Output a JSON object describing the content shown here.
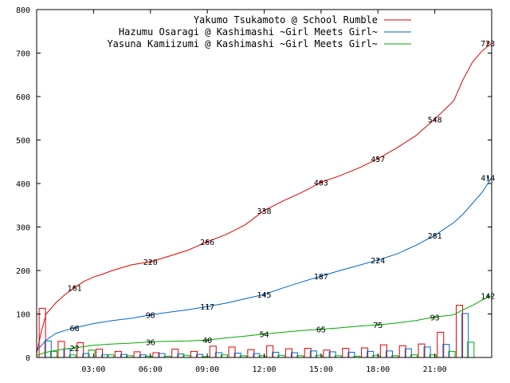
{
  "chart_data": {
    "type": "line",
    "xlim": [
      0,
      24
    ],
    "ylim": [
      0,
      800
    ],
    "x_ticks": [
      {
        "x": 3,
        "label": "03:00"
      },
      {
        "x": 6,
        "label": "06:00"
      },
      {
        "x": 9,
        "label": "09:00"
      },
      {
        "x": 12,
        "label": "12:00"
      },
      {
        "x": 15,
        "label": "15:00"
      },
      {
        "x": 18,
        "label": "18:00"
      },
      {
        "x": 21,
        "label": "21:00"
      }
    ],
    "y_ticks": [
      0,
      100,
      200,
      300,
      400,
      500,
      600,
      700,
      800
    ],
    "grid": false,
    "legend_position": "top-right",
    "series": [
      {
        "name": "Yakumo Tsukamoto @ School Rumble",
        "color": "#e00000",
        "points": [
          [
            0,
            10
          ],
          [
            0.25,
            60
          ],
          [
            0.5,
            100
          ],
          [
            1,
            125
          ],
          [
            1.5,
            145
          ],
          [
            2,
            161
          ],
          [
            2.5,
            175
          ],
          [
            3,
            185
          ],
          [
            3.5,
            192
          ],
          [
            4,
            200
          ],
          [
            5,
            213
          ],
          [
            6,
            220
          ],
          [
            7,
            233
          ],
          [
            8,
            247
          ],
          [
            9,
            266
          ],
          [
            10,
            283
          ],
          [
            11,
            305
          ],
          [
            12,
            338
          ],
          [
            13,
            360
          ],
          [
            14,
            380
          ],
          [
            15,
            403
          ],
          [
            16,
            418
          ],
          [
            17,
            436
          ],
          [
            18,
            457
          ],
          [
            19,
            482
          ],
          [
            20,
            510
          ],
          [
            21,
            548
          ],
          [
            22,
            590
          ],
          [
            22.5,
            640
          ],
          [
            23,
            680
          ],
          [
            23.5,
            705
          ],
          [
            24,
            723
          ]
        ],
        "labels": [
          [
            2,
            161
          ],
          [
            6,
            220
          ],
          [
            9,
            266
          ],
          [
            12,
            338
          ],
          [
            15,
            403
          ],
          [
            18,
            457
          ],
          [
            21,
            548
          ],
          [
            23.8,
            723
          ]
        ],
        "bars": [
          [
            0.3,
            113
          ],
          [
            1.3,
            37
          ],
          [
            2.3,
            34
          ],
          [
            3.3,
            19
          ],
          [
            4.3,
            14
          ],
          [
            5.3,
            13
          ],
          [
            6.3,
            11
          ],
          [
            7.3,
            19
          ],
          [
            8.3,
            14
          ],
          [
            9.3,
            26
          ],
          [
            10.3,
            24
          ],
          [
            11.3,
            18
          ],
          [
            12.3,
            27
          ],
          [
            13.3,
            20
          ],
          [
            14.3,
            21
          ],
          [
            15.3,
            17
          ],
          [
            16.3,
            21
          ],
          [
            17.3,
            22
          ],
          [
            18.3,
            29
          ],
          [
            19.3,
            27
          ],
          [
            20.3,
            31
          ],
          [
            21.3,
            58
          ],
          [
            22.3,
            120
          ]
        ]
      },
      {
        "name": "Hazumu Osaragi @ Kashimashi ~Girl Meets Girl~",
        "color": "#0066cc",
        "points": [
          [
            0,
            15
          ],
          [
            0.5,
            40
          ],
          [
            1,
            55
          ],
          [
            1.5,
            62
          ],
          [
            2,
            68
          ],
          [
            3,
            78
          ],
          [
            4,
            85
          ],
          [
            5,
            90
          ],
          [
            6,
            98
          ],
          [
            7,
            104
          ],
          [
            8,
            110
          ],
          [
            9,
            117
          ],
          [
            10,
            125
          ],
          [
            11,
            135
          ],
          [
            12,
            145
          ],
          [
            13,
            160
          ],
          [
            14,
            174
          ],
          [
            15,
            187
          ],
          [
            16,
            200
          ],
          [
            17,
            212
          ],
          [
            18,
            224
          ],
          [
            19,
            238
          ],
          [
            20,
            258
          ],
          [
            21,
            281
          ],
          [
            22,
            310
          ],
          [
            22.5,
            330
          ],
          [
            23,
            355
          ],
          [
            23.5,
            380
          ],
          [
            24,
            414
          ]
        ],
        "labels": [
          [
            2,
            68
          ],
          [
            6,
            98
          ],
          [
            9,
            117
          ],
          [
            12,
            145
          ],
          [
            15,
            187
          ],
          [
            18,
            224
          ],
          [
            21,
            281
          ],
          [
            23.8,
            414
          ]
        ],
        "bars": [
          [
            0.6,
            38
          ],
          [
            1.6,
            20
          ],
          [
            2.6,
            9
          ],
          [
            3.6,
            6
          ],
          [
            4.6,
            7
          ],
          [
            5.6,
            6
          ],
          [
            6.6,
            9
          ],
          [
            7.6,
            8
          ],
          [
            8.6,
            7
          ],
          [
            9.6,
            11
          ],
          [
            10.6,
            10
          ],
          [
            11.6,
            9
          ],
          [
            12.6,
            12
          ],
          [
            13.6,
            11
          ],
          [
            14.6,
            15
          ],
          [
            15.6,
            13
          ],
          [
            16.6,
            12
          ],
          [
            17.6,
            14
          ],
          [
            18.6,
            15
          ],
          [
            19.6,
            20
          ],
          [
            20.6,
            24
          ],
          [
            21.6,
            30
          ],
          [
            22.6,
            101
          ]
        ]
      },
      {
        "name": "Yasuna Kamiizumi @ Kashimashi ~Girl Meets Girl~",
        "color": "#00aa00",
        "points": [
          [
            0,
            5
          ],
          [
            0.5,
            12
          ],
          [
            1,
            16
          ],
          [
            1.5,
            20
          ],
          [
            2,
            22
          ],
          [
            3,
            28
          ],
          [
            4,
            31
          ],
          [
            5,
            33
          ],
          [
            6,
            36
          ],
          [
            7,
            37
          ],
          [
            8,
            38
          ],
          [
            9,
            40
          ],
          [
            10,
            45
          ],
          [
            11,
            49
          ],
          [
            12,
            54
          ],
          [
            13,
            58
          ],
          [
            14,
            62
          ],
          [
            15,
            65
          ],
          [
            16,
            68
          ],
          [
            17,
            72
          ],
          [
            18,
            75
          ],
          [
            19,
            79
          ],
          [
            20,
            85
          ],
          [
            21,
            93
          ],
          [
            22,
            98
          ],
          [
            22.5,
            110
          ],
          [
            23,
            120
          ],
          [
            23.5,
            132
          ],
          [
            24,
            142
          ]
        ],
        "labels": [
          [
            2,
            22
          ],
          [
            6,
            36
          ],
          [
            9,
            40
          ],
          [
            12,
            54
          ],
          [
            15,
            65
          ],
          [
            18,
            75
          ],
          [
            21,
            93
          ],
          [
            23.8,
            142
          ]
        ],
        "bars": [
          [
            0.9,
            14
          ],
          [
            1.9,
            6
          ],
          [
            2.9,
            17
          ],
          [
            3.9,
            6
          ],
          [
            4.9,
            4
          ],
          [
            5.9,
            3
          ],
          [
            6.9,
            3
          ],
          [
            7.9,
            5
          ],
          [
            8.9,
            2
          ],
          [
            9.9,
            6
          ],
          [
            10.9,
            4
          ],
          [
            11.9,
            4
          ],
          [
            12.9,
            5
          ],
          [
            13.9,
            4
          ],
          [
            14.9,
            5
          ],
          [
            15.9,
            4
          ],
          [
            16.9,
            3
          ],
          [
            17.9,
            5
          ],
          [
            18.9,
            4
          ],
          [
            19.9,
            6
          ],
          [
            20.9,
            6
          ],
          [
            21.9,
            14
          ],
          [
            22.9,
            35
          ]
        ]
      }
    ]
  }
}
